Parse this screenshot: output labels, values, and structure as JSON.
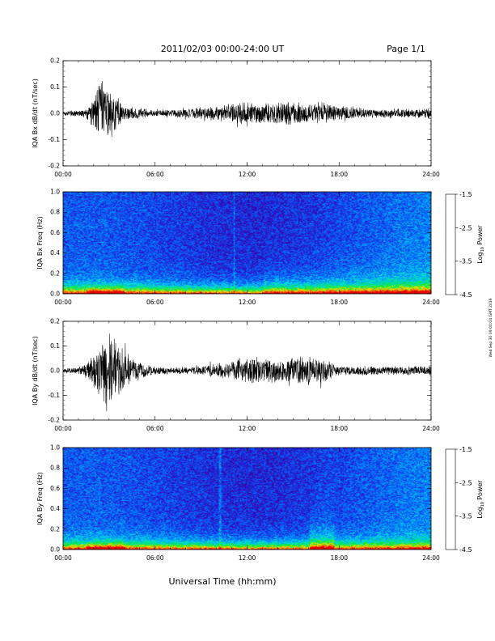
{
  "header": {
    "date_range": "2011/02/03  00:00-24:00 UT",
    "page": "Page 1/1"
  },
  "footer": {
    "xlabel": "Universal Time (hh:mm)"
  },
  "side_note": "Wed Sep 30 09:00:04 GMT 2019",
  "colorbar": {
    "label": "Log10 Power",
    "ticks": [
      "-1.5",
      "-2.5",
      "-3.5",
      "-4.5"
    ],
    "range": [
      -4.5,
      -1.5
    ]
  },
  "chart_data": [
    {
      "type": "line",
      "ylabel": "IQA Bx dB/dt (nT/sec)",
      "xlim": [
        "00:00",
        "24:00"
      ],
      "ylim": [
        -0.2,
        0.2
      ],
      "x_ticks": [
        "00:00",
        "06:00",
        "12:00",
        "18:00",
        "24:00"
      ],
      "y_ticks": [
        "0.2",
        "0.1",
        "0.0",
        "-0.1",
        "-0.2"
      ],
      "series": [
        {
          "x_hours": [
            0,
            1,
            1.5,
            2,
            2.3,
            2.6,
            3,
            3.5,
            4,
            5,
            6,
            7,
            8,
            9,
            10,
            11,
            11.5,
            12,
            13,
            14,
            15,
            16,
            17,
            18,
            19,
            20,
            21,
            22,
            23,
            24
          ],
          "envelope": [
            0.01,
            0.015,
            0.02,
            0.06,
            0.15,
            0.13,
            0.1,
            0.07,
            0.03,
            0.02,
            0.015,
            0.015,
            0.02,
            0.025,
            0.03,
            0.04,
            0.06,
            0.05,
            0.04,
            0.045,
            0.05,
            0.045,
            0.045,
            0.03,
            0.025,
            0.02,
            0.02,
            0.02,
            0.02,
            0.02
          ]
        }
      ]
    },
    {
      "type": "heatmap",
      "ylabel": "IQA Bx Freq (Hz)",
      "xlim": [
        "00:00",
        "24:00"
      ],
      "ylim": [
        0.0,
        1.0
      ],
      "x_ticks": [
        "00:00",
        "06:00",
        "12:00",
        "18:00",
        "24:00"
      ],
      "y_ticks": [
        "1.0",
        "0.8",
        "0.6",
        "0.4",
        "0.2",
        "0.0"
      ]
    },
    {
      "type": "line",
      "ylabel": "IQA By dB/dt (nT/sec)",
      "xlim": [
        "00:00",
        "24:00"
      ],
      "ylim": [
        -0.2,
        0.2
      ],
      "x_ticks": [
        "00:00",
        "06:00",
        "12:00",
        "18:00",
        "24:00"
      ],
      "y_ticks": [
        "0.2",
        "0.1",
        "0.0",
        "-0.1",
        "-0.2"
      ],
      "series": [
        {
          "x_hours": [
            0,
            1,
            1.5,
            2,
            2.5,
            3,
            3.3,
            3.8,
            4.5,
            5.5,
            6,
            7,
            8,
            9,
            10,
            11,
            12,
            13,
            14,
            15,
            15.5,
            16,
            17,
            17.5,
            18,
            19,
            20,
            21,
            22,
            23,
            24
          ],
          "envelope": [
            0.01,
            0.015,
            0.03,
            0.08,
            0.12,
            0.17,
            0.15,
            0.1,
            0.06,
            0.03,
            0.02,
            0.015,
            0.015,
            0.02,
            0.03,
            0.045,
            0.06,
            0.055,
            0.05,
            0.06,
            0.07,
            0.06,
            0.055,
            0.04,
            0.02,
            0.02,
            0.02,
            0.02,
            0.02,
            0.02,
            0.02
          ]
        }
      ]
    },
    {
      "type": "heatmap",
      "ylabel": "IQA By Freq (Hz)",
      "xlim": [
        "00:00",
        "24:00"
      ],
      "ylim": [
        0.0,
        1.0
      ],
      "x_ticks": [
        "00:00",
        "06:00",
        "12:00",
        "18:00",
        "24:00"
      ],
      "y_ticks": [
        "1.0",
        "0.8",
        "0.6",
        "0.4",
        "0.2",
        "0.0"
      ]
    }
  ]
}
